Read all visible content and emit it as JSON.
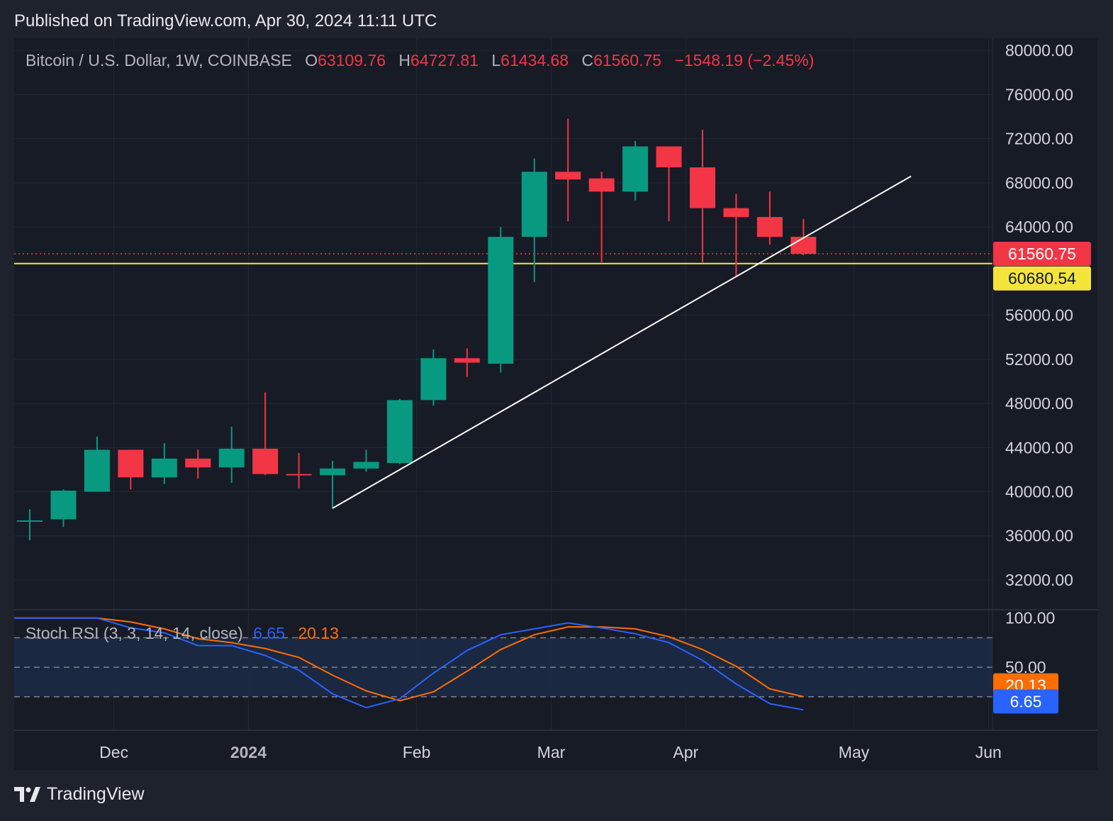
{
  "header": {
    "published": "Published on TradingView.com, Apr 30, 2024 11:11 UTC"
  },
  "legend": {
    "symbol": "Bitcoin / U.S. Dollar, 1W, COINBASE",
    "o_label": "O",
    "o_value": "63109.76",
    "h_label": "H",
    "h_value": "64727.81",
    "l_label": "L",
    "l_value": "61434.68",
    "c_label": "C",
    "c_value": "61560.75",
    "change": "−1548.19 (−2.45%)"
  },
  "stoch_legend": {
    "name": "Stoch RSI (3, 3, 14, 14, close)",
    "k_value": "6.65",
    "d_value": "20.13"
  },
  "footer": {
    "brand": "TradingView"
  },
  "colors": {
    "up": "#089981",
    "down": "#f23645",
    "support": "#f5e53a",
    "k_line": "#2962ff",
    "d_line": "#ff6d00",
    "background": "#171b26"
  },
  "chart_data": [
    {
      "type": "candlestick",
      "title": "Bitcoin / U.S. Dollar, 1W, COINBASE",
      "y_ticks": [
        "80000.00",
        "76000.00",
        "72000.00",
        "68000.00",
        "64000.00",
        "56000.00",
        "52000.00",
        "48000.00",
        "44000.00",
        "40000.00",
        "36000.00",
        "32000.00"
      ],
      "ylim": [
        29300,
        81100
      ],
      "x_ticks": [
        {
          "label": "Dec",
          "week": 2.5,
          "bold": false
        },
        {
          "label": "2024",
          "week": 6.5,
          "bold": true
        },
        {
          "label": "Feb",
          "week": 11.5,
          "bold": false
        },
        {
          "label": "Mar",
          "week": 15.5,
          "bold": false
        },
        {
          "label": "Apr",
          "week": 19.5,
          "bold": false
        },
        {
          "label": "May",
          "week": 24.5,
          "bold": false
        },
        {
          "label": "Jun",
          "week": 28.5,
          "bold": false
        }
      ],
      "candles": [
        {
          "o": 37300,
          "h": 38400,
          "l": 35600,
          "c": 37400
        },
        {
          "o": 37500,
          "h": 40200,
          "l": 36800,
          "c": 40100
        },
        {
          "o": 40000,
          "h": 45000,
          "l": 40000,
          "c": 43800
        },
        {
          "o": 43800,
          "h": 43800,
          "l": 40200,
          "c": 41300
        },
        {
          "o": 41300,
          "h": 44400,
          "l": 40700,
          "c": 43000
        },
        {
          "o": 43000,
          "h": 43800,
          "l": 41200,
          "c": 42200
        },
        {
          "o": 42200,
          "h": 45900,
          "l": 40800,
          "c": 43900
        },
        {
          "o": 43900,
          "h": 49000,
          "l": 41500,
          "c": 41600
        },
        {
          "o": 41600,
          "h": 43500,
          "l": 40300,
          "c": 41500
        },
        {
          "o": 41500,
          "h": 42800,
          "l": 38500,
          "c": 42100
        },
        {
          "o": 42100,
          "h": 43800,
          "l": 41800,
          "c": 42700
        },
        {
          "o": 42600,
          "h": 48400,
          "l": 42500,
          "c": 48300
        },
        {
          "o": 48300,
          "h": 52900,
          "l": 47800,
          "c": 52100
        },
        {
          "o": 52100,
          "h": 53000,
          "l": 50400,
          "c": 51700
        },
        {
          "o": 51600,
          "h": 64000,
          "l": 50800,
          "c": 63100
        },
        {
          "o": 63100,
          "h": 70200,
          "l": 59000,
          "c": 69000
        },
        {
          "o": 69000,
          "h": 73800,
          "l": 64500,
          "c": 68300
        },
        {
          "o": 68400,
          "h": 69000,
          "l": 60800,
          "c": 67200
        },
        {
          "o": 67200,
          "h": 71800,
          "l": 66400,
          "c": 71300
        },
        {
          "o": 71300,
          "h": 71300,
          "l": 64500,
          "c": 69400
        },
        {
          "o": 69400,
          "h": 72800,
          "l": 60800,
          "c": 65700
        },
        {
          "o": 65700,
          "h": 67000,
          "l": 59600,
          "c": 64900
        },
        {
          "o": 64900,
          "h": 67200,
          "l": 62400,
          "c": 63100
        },
        {
          "o": 63109.76,
          "h": 64727.81,
          "l": 61434.68,
          "c": 61560.75
        }
      ],
      "annotations": {
        "last_price": "61560.75",
        "support_level": "60680.54",
        "trendline": {
          "from": {
            "week": 9,
            "price": 38500
          },
          "to": {
            "week": 26.2,
            "price": 68600
          }
        }
      }
    },
    {
      "type": "line",
      "title": "Stoch RSI (3, 3, 14, 14, close)",
      "y_ticks": [
        "100.00",
        "50.00"
      ],
      "ylim": [
        -14,
        107
      ],
      "bands": [
        20,
        50,
        80
      ],
      "series": [
        {
          "name": "K",
          "color": "#2962ff",
          "last": "6.65",
          "points": [
            [
              -1,
              100
            ],
            [
              0,
              100
            ],
            [
              1,
              100
            ],
            [
              2,
              100
            ],
            [
              3,
              90
            ],
            [
              4,
              85
            ],
            [
              5,
              72
            ],
            [
              6,
              72
            ],
            [
              7,
              62
            ],
            [
              8,
              47
            ],
            [
              9,
              23
            ],
            [
              10,
              9
            ],
            [
              11,
              18
            ],
            [
              12,
              44
            ],
            [
              13,
              67
            ],
            [
              14,
              83
            ],
            [
              15,
              89
            ],
            [
              16,
              95
            ],
            [
              17,
              90
            ],
            [
              18,
              84
            ],
            [
              19,
              75
            ],
            [
              20,
              57
            ],
            [
              21,
              33
            ],
            [
              22,
              13
            ],
            [
              23,
              6.65
            ]
          ]
        },
        {
          "name": "D",
          "color": "#ff6d00",
          "last": "20.13",
          "points": [
            [
              -1,
              100
            ],
            [
              0,
              100
            ],
            [
              1,
              100
            ],
            [
              2,
              100
            ],
            [
              3,
              96
            ],
            [
              4,
              89
            ],
            [
              5,
              79
            ],
            [
              6,
              75
            ],
            [
              7,
              69
            ],
            [
              8,
              60
            ],
            [
              9,
              42
            ],
            [
              10,
              26
            ],
            [
              11,
              16
            ],
            [
              12,
              25
            ],
            [
              13,
              46
            ],
            [
              14,
              68
            ],
            [
              15,
              83
            ],
            [
              16,
              91
            ],
            [
              17,
              91
            ],
            [
              18,
              89
            ],
            [
              19,
              81
            ],
            [
              20,
              68
            ],
            [
              21,
              51
            ],
            [
              22,
              28
            ],
            [
              23,
              20.13
            ]
          ]
        }
      ]
    }
  ]
}
